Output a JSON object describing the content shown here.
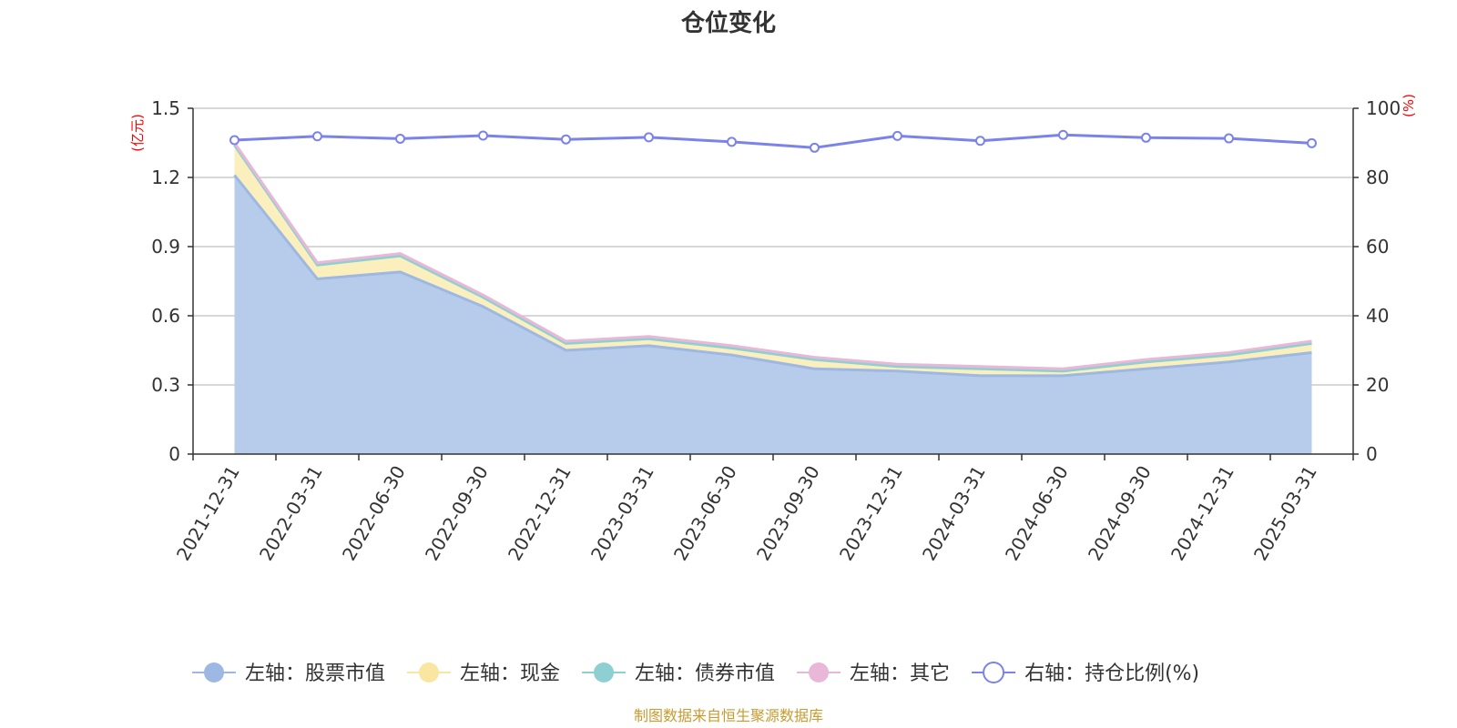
{
  "chart_data": {
    "type": "area",
    "title": "仓位变化",
    "left_unit": "(亿元)",
    "right_unit": "(%)",
    "categories": [
      "2021-12-31",
      "2022-03-31",
      "2022-06-30",
      "2022-09-30",
      "2022-12-31",
      "2023-03-31",
      "2023-06-30",
      "2023-09-30",
      "2023-12-31",
      "2024-03-31",
      "2024-06-30",
      "2024-09-30",
      "2024-12-31",
      "2025-03-31"
    ],
    "left_axis": {
      "min": 0,
      "max": 1.5,
      "ticks": [
        "0",
        "0.3",
        "0.6",
        "0.9",
        "1.2",
        "1.5"
      ]
    },
    "right_axis": {
      "min": 0,
      "max": 100,
      "ticks": [
        "0",
        "20",
        "40",
        "60",
        "80",
        "100"
      ]
    },
    "stack_order": [
      "股票市值",
      "现金",
      "债券市值",
      "其它"
    ],
    "series": [
      {
        "name": "左轴：股票市值",
        "key": "股票市值",
        "axis": "left",
        "color": "#9db8e2",
        "fill": "#b7cceb",
        "values": [
          1.21,
          0.76,
          0.79,
          0.64,
          0.45,
          0.47,
          0.43,
          0.37,
          0.36,
          0.34,
          0.34,
          0.37,
          0.4,
          0.44
        ]
      },
      {
        "name": "左轴：现金",
        "key": "现金",
        "axis": "left",
        "color": "#f9e6a0",
        "fill": "#fbefbe",
        "values": [
          0.13,
          0.06,
          0.07,
          0.04,
          0.03,
          0.03,
          0.03,
          0.04,
          0.02,
          0.03,
          0.02,
          0.03,
          0.03,
          0.04
        ]
      },
      {
        "name": "左轴：债券市值",
        "key": "债券市值",
        "axis": "left",
        "color": "#8ed0d2",
        "fill": "#b9e3e4",
        "values": [
          0,
          0,
          0,
          0,
          0,
          0,
          0,
          0,
          0,
          0,
          0,
          0,
          0,
          0
        ]
      },
      {
        "name": "左轴：其它",
        "key": "其它",
        "axis": "left",
        "color": "#e9b7d8",
        "fill": "#f3d6e9",
        "values": [
          0.01,
          0.01,
          0.01,
          0.01,
          0.01,
          0.01,
          0.01,
          0.01,
          0.01,
          0.01,
          0.01,
          0.01,
          0.01,
          0.01
        ]
      },
      {
        "name": "右轴：持仓比例(%)",
        "key": "持仓比例",
        "axis": "right",
        "color": "#7b83eb",
        "values": [
          90.8,
          91.9,
          91.2,
          92.1,
          91.0,
          91.6,
          90.3,
          88.6,
          92.0,
          90.6,
          92.3,
          91.5,
          91.3,
          89.9
        ]
      }
    ],
    "grid": true,
    "legend_position": "bottom",
    "source": "制图数据来自恒生聚源数据库"
  }
}
